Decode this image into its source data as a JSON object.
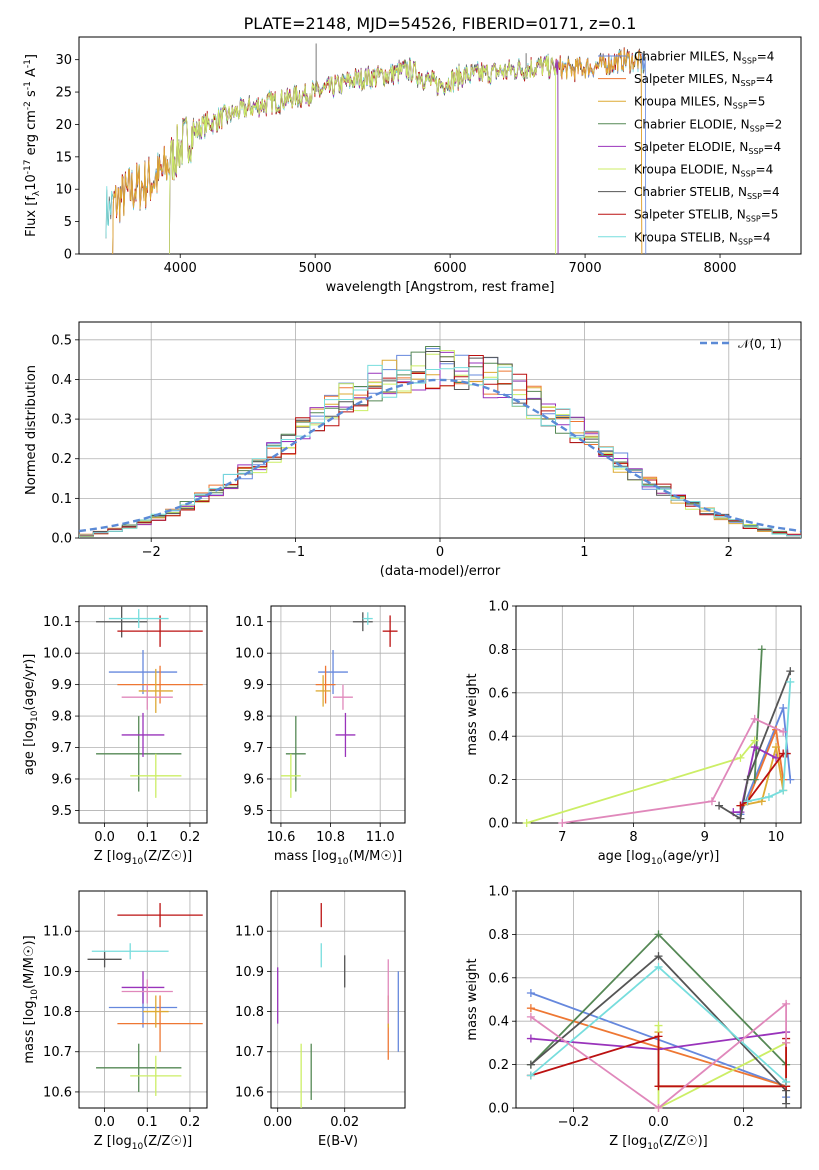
{
  "title": "PLATE=2148, MJD=54526, FIBERID=0171, z=0.1",
  "colors": {
    "Chabrier MILES": "#6688dd",
    "Salpeter MILES": "#ee7733",
    "Kroupa MILES": "#ddaa33",
    "Chabrier ELODIE": "#558855",
    "Salpeter ELODIE": "#9933bb",
    "Kroupa ELODIE": "#ccee66",
    "Chabrier STELIB": "#555555",
    "Salpeter STELIB": "#bb1111",
    "Kroupa STELIB": "#77dddd",
    "normal_curve": "#5b8ad6",
    "pink": "#e088bb"
  },
  "chart_data": [
    {
      "id": "spectrum",
      "type": "line",
      "xlabel": "wavelength [Angstrom, rest frame]",
      "ylabel": "Flux [f_λ10^-17 erg cm^-2 s^-1 A^-1]",
      "xlim": [
        3250,
        8600
      ],
      "ylim": [
        0,
        33.5
      ],
      "xticks": [
        4000,
        5000,
        6000,
        7000,
        8000
      ],
      "yticks": [
        0,
        5,
        10,
        15,
        20,
        25,
        30
      ],
      "legend_position": "top-right",
      "legend": [
        {
          "name": "Chabrier MILES, N_SSP=4",
          "base": "Chabrier MILES, N",
          "sub": "SSP",
          "tail": "=4",
          "color_key": "Chabrier MILES"
        },
        {
          "name": "Salpeter MILES, N_SSP=4",
          "base": "Salpeter MILES, N",
          "sub": "SSP",
          "tail": "=4",
          "color_key": "Salpeter MILES"
        },
        {
          "name": "Kroupa MILES, N_SSP=5",
          "base": "Kroupa MILES, N",
          "sub": "SSP",
          "tail": "=5",
          "color_key": "Kroupa MILES"
        },
        {
          "name": "Chabrier ELODIE, N_SSP=2",
          "base": "Chabrier ELODIE, N",
          "sub": "SSP",
          "tail": "=2",
          "color_key": "Chabrier ELODIE"
        },
        {
          "name": "Salpeter ELODIE, N_SSP=4",
          "base": "Salpeter ELODIE, N",
          "sub": "SSP",
          "tail": "=4",
          "color_key": "Salpeter ELODIE"
        },
        {
          "name": "Kroupa ELODIE, N_SSP=4",
          "base": "Kroupa ELODIE, N",
          "sub": "SSP",
          "tail": "=4",
          "color_key": "Kroupa ELODIE"
        },
        {
          "name": "Chabrier STELIB, N_SSP=4",
          "base": "Chabrier STELIB, N",
          "sub": "SSP",
          "tail": "=4",
          "color_key": "Chabrier STELIB"
        },
        {
          "name": "Salpeter STELIB, N_SSP=5",
          "base": "Salpeter STELIB, N",
          "sub": "SSP",
          "tail": "=5",
          "color_key": "Salpeter STELIB"
        },
        {
          "name": "Kroupa STELIB, N_SSP=4",
          "base": "Kroupa STELIB, N",
          "sub": "SSP",
          "tail": "=4",
          "color_key": "Kroupa STELIB"
        }
      ],
      "envelope": {
        "x": [
          3450,
          3550,
          3650,
          3750,
          3850,
          3950,
          4050,
          4150,
          4300,
          4500,
          4700,
          4900,
          5100,
          5300,
          5500,
          5700,
          5900,
          6100,
          6300,
          6500,
          6700,
          6900,
          7100,
          7300,
          7450
        ],
        "y": [
          6.5,
          8.5,
          10,
          11,
          12,
          15,
          18,
          19.5,
          21,
          22.5,
          23.5,
          24.5,
          25.5,
          27,
          27.5,
          28.5,
          26,
          27.5,
          28,
          28.5,
          29,
          28.5,
          29,
          30,
          29.5
        ]
      },
      "series_ranges": {
        "Chabrier MILES": [
          3500,
          7450
        ],
        "Salpeter MILES": [
          3500,
          7420
        ],
        "Kroupa MILES": [
          3500,
          7420
        ],
        "Chabrier ELODIE": [
          3920,
          6800
        ],
        "Salpeter ELODIE": [
          3920,
          6800
        ],
        "Kroupa ELODIE": [
          3920,
          6780
        ],
        "Chabrier STELIB": [
          3450,
          7450
        ],
        "Salpeter STELIB": [
          3500,
          7420
        ],
        "Kroupa STELIB": [
          3450,
          7450
        ]
      },
      "emission_lines": [
        {
          "x": 5007,
          "y": 32.5
        },
        {
          "x": 6563,
          "y": 31.0
        }
      ]
    },
    {
      "id": "residuals",
      "type": "histogram",
      "xlabel": "(data-model)/error",
      "ylabel": "Normed distribution",
      "xlim": [
        -2.5,
        2.5
      ],
      "ylim": [
        0,
        0.545
      ],
      "xticks": [
        -2,
        -1,
        0,
        1,
        2
      ],
      "yticks": [
        0.0,
        0.1,
        0.2,
        0.3,
        0.4,
        0.5
      ],
      "grid": true,
      "bin_edges": [
        -2.5,
        2.5
      ],
      "n_bins": 50,
      "legend_label": "𝒩(0, 1)",
      "legend_position": "top-right",
      "curve": "standard normal N(0,1)"
    },
    {
      "id": "age_vs_Z",
      "type": "errorbar",
      "xlabel": "Z [log10(Z/Z☉)]",
      "ylabel": "age [log10(age/yr)]",
      "xlim": [
        -0.06,
        0.24
      ],
      "ylim": [
        9.46,
        10.15
      ],
      "xticks": [
        0.0,
        0.1,
        0.2
      ],
      "yticks": [
        9.5,
        9.6,
        9.7,
        9.8,
        9.9,
        10.0,
        10.1
      ],
      "grid": true,
      "points": [
        {
          "model": "Chabrier MILES",
          "x": 0.09,
          "y": 9.94,
          "xerr": 0.08,
          "yerr": 0.07
        },
        {
          "model": "Salpeter MILES",
          "x": 0.13,
          "y": 9.9,
          "xerr": 0.1,
          "yerr": 0.06
        },
        {
          "model": "Kroupa MILES",
          "x": 0.12,
          "y": 9.88,
          "xerr": 0.04,
          "yerr": 0.07
        },
        {
          "model": "Chabrier ELODIE",
          "x": 0.08,
          "y": 9.68,
          "xerr": 0.1,
          "yerr": 0.12
        },
        {
          "model": "Salpeter ELODIE",
          "x": 0.09,
          "y": 9.74,
          "xerr": 0.05,
          "yerr": 0.07
        },
        {
          "model": "Kroupa ELODIE",
          "x": 0.12,
          "y": 9.61,
          "xerr": 0.06,
          "yerr": 0.07
        },
        {
          "model": "Chabrier STELIB",
          "x": 0.04,
          "y": 10.1,
          "xerr": 0.06,
          "yerr": 0.05
        },
        {
          "model": "Salpeter STELIB",
          "x": 0.13,
          "y": 10.07,
          "xerr": 0.1,
          "yerr": 0.05
        },
        {
          "model": "Kroupa STELIB",
          "x": 0.08,
          "y": 10.11,
          "xerr": 0.07,
          "yerr": 0.03
        },
        {
          "model": "pink",
          "x": 0.1,
          "y": 9.86,
          "xerr": 0.06,
          "yerr": 0.04
        }
      ]
    },
    {
      "id": "age_vs_mass",
      "type": "errorbar",
      "xlabel": "mass [log10(M/M☉)]",
      "ylabel": "",
      "xlim": [
        10.56,
        11.1
      ],
      "ylim": [
        9.46,
        10.15
      ],
      "xticks": [
        10.6,
        10.8,
        11.0
      ],
      "yticks": [
        9.5,
        9.6,
        9.7,
        9.8,
        9.9,
        10.0,
        10.1
      ],
      "grid": true,
      "points": [
        {
          "model": "Chabrier MILES",
          "x": 10.81,
          "y": 9.94,
          "xerr": 0.06,
          "yerr": 0.07
        },
        {
          "model": "Salpeter MILES",
          "x": 10.78,
          "y": 9.9,
          "xerr": 0.04,
          "yerr": 0.06
        },
        {
          "model": "Kroupa MILES",
          "x": 10.77,
          "y": 9.88,
          "xerr": 0.03,
          "yerr": 0.05
        },
        {
          "model": "Chabrier ELODIE",
          "x": 10.66,
          "y": 9.68,
          "xerr": 0.04,
          "yerr": 0.12
        },
        {
          "model": "Salpeter ELODIE",
          "x": 10.86,
          "y": 9.74,
          "xerr": 0.04,
          "yerr": 0.07
        },
        {
          "model": "Kroupa ELODIE",
          "x": 10.64,
          "y": 9.61,
          "xerr": 0.04,
          "yerr": 0.07
        },
        {
          "model": "Chabrier STELIB",
          "x": 10.93,
          "y": 10.1,
          "xerr": 0.04,
          "yerr": 0.03
        },
        {
          "model": "Salpeter STELIB",
          "x": 11.04,
          "y": 10.07,
          "xerr": 0.03,
          "yerr": 0.05
        },
        {
          "model": "Kroupa STELIB",
          "x": 10.95,
          "y": 10.11,
          "xerr": 0.02,
          "yerr": 0.02
        },
        {
          "model": "pink",
          "x": 10.85,
          "y": 9.86,
          "xerr": 0.04,
          "yerr": 0.04
        }
      ]
    },
    {
      "id": "weight_vs_age",
      "type": "line",
      "xlabel": "age [log10(age/yr)]",
      "ylabel": "mass weight",
      "xlim": [
        6.35,
        10.35
      ],
      "ylim": [
        0,
        1.0
      ],
      "xticks": [
        7,
        8,
        9,
        10
      ],
      "yticks": [
        0.0,
        0.2,
        0.4,
        0.6,
        0.8,
        1.0
      ],
      "grid": true,
      "series": [
        {
          "model": "Chabrier MILES",
          "x": [
            9.5,
            10.1,
            10.2
          ],
          "y": [
            0.04,
            0.53,
            0.2
          ]
        },
        {
          "model": "Salpeter MILES",
          "x": [
            9.6,
            10.0,
            10.1
          ],
          "y": [
            0.1,
            0.43,
            0.2
          ]
        },
        {
          "model": "Kroupa MILES",
          "x": [
            9.5,
            9.8,
            10.0,
            10.1
          ],
          "y": [
            0.08,
            0.1,
            0.35,
            0.15
          ]
        },
        {
          "model": "Chabrier ELODIE",
          "x": [
            9.7,
            9.8
          ],
          "y": [
            0.2,
            0.8
          ]
        },
        {
          "model": "Salpeter ELODIE",
          "x": [
            9.4,
            9.5,
            9.7,
            10.0
          ],
          "y": [
            0.05,
            0.05,
            0.35,
            0.3
          ]
        },
        {
          "model": "Kroupa ELODIE",
          "x": [
            6.5,
            9.5,
            9.7
          ],
          "y": [
            0.0,
            0.3,
            0.38
          ]
        },
        {
          "model": "Chabrier STELIB",
          "x": [
            9.2,
            9.5,
            9.6,
            10.2
          ],
          "y": [
            0.08,
            0.02,
            0.2,
            0.7
          ]
        },
        {
          "model": "Salpeter STELIB",
          "x": [
            9.5,
            9.6,
            10.1,
            10.15
          ],
          "y": [
            0.08,
            0.1,
            0.32,
            0.32
          ]
        },
        {
          "model": "Kroupa STELIB",
          "x": [
            9.6,
            9.9,
            10.1,
            10.2
          ],
          "y": [
            0.1,
            0.12,
            0.15,
            0.65
          ]
        },
        {
          "model": "pink",
          "x": [
            7.0,
            9.1,
            9.7,
            10.1
          ],
          "y": [
            0.0,
            0.1,
            0.48,
            0.42
          ]
        }
      ]
    },
    {
      "id": "mass_vs_Z",
      "type": "errorbar",
      "xlabel": "Z [log10(Z/Z☉)]",
      "ylabel": "mass [log10(M/M☉)]",
      "xlim": [
        -0.06,
        0.24
      ],
      "ylim": [
        10.56,
        11.1
      ],
      "xticks": [
        0.0,
        0.1,
        0.2
      ],
      "yticks": [
        10.6,
        10.7,
        10.8,
        10.9,
        11.0
      ],
      "grid": true,
      "points": [
        {
          "model": "Chabrier MILES",
          "x": 0.09,
          "y": 10.81,
          "xerr": 0.08,
          "yerr": 0.05
        },
        {
          "model": "Salpeter MILES",
          "x": 0.13,
          "y": 10.77,
          "xerr": 0.1,
          "yerr": 0.07
        },
        {
          "model": "Kroupa MILES",
          "x": 0.12,
          "y": 10.8,
          "xerr": 0.03,
          "yerr": 0.04
        },
        {
          "model": "Chabrier ELODIE",
          "x": 0.08,
          "y": 10.66,
          "xerr": 0.1,
          "yerr": 0.06
        },
        {
          "model": "Salpeter ELODIE",
          "x": 0.09,
          "y": 10.86,
          "xerr": 0.05,
          "yerr": 0.04
        },
        {
          "model": "Kroupa ELODIE",
          "x": 0.12,
          "y": 10.64,
          "xerr": 0.06,
          "yerr": 0.05
        },
        {
          "model": "Chabrier STELIB",
          "x": 0.0,
          "y": 10.93,
          "xerr": 0.04,
          "yerr": 0.02
        },
        {
          "model": "Salpeter STELIB",
          "x": 0.13,
          "y": 11.04,
          "xerr": 0.1,
          "yerr": 0.03
        },
        {
          "model": "Kroupa STELIB",
          "x": 0.06,
          "y": 10.95,
          "xerr": 0.09,
          "yerr": 0.02
        },
        {
          "model": "pink",
          "x": 0.1,
          "y": 10.85,
          "xerr": 0.06,
          "yerr": 0.03
        }
      ]
    },
    {
      "id": "mass_vs_ebv",
      "type": "errorbar",
      "xlabel": "E(B-V)",
      "ylabel": "",
      "xlim": [
        -0.002,
        0.038
      ],
      "ylim": [
        10.56,
        11.1
      ],
      "xticks": [
        0.0,
        0.02
      ],
      "yticks": [
        10.6,
        10.7,
        10.8,
        10.9,
        11.0
      ],
      "grid": true,
      "points": [
        {
          "model": "Chabrier MILES",
          "x": 0.036,
          "y": 10.8,
          "xerr": 0.0,
          "yerr": 0.1
        },
        {
          "model": "Salpeter MILES",
          "x": 0.033,
          "y": 10.76,
          "xerr": 0.0,
          "yerr": 0.08
        },
        {
          "model": "Kroupa MILES",
          "x": 0.033,
          "y": 10.8,
          "xerr": 0.0,
          "yerr": 0.04
        },
        {
          "model": "Chabrier ELODIE",
          "x": 0.01,
          "y": 10.65,
          "xerr": 0.0,
          "yerr": 0.07
        },
        {
          "model": "Salpeter ELODIE",
          "x": 0.0,
          "y": 10.84,
          "xerr": 0.0,
          "yerr": 0.07
        },
        {
          "model": "Kroupa ELODIE",
          "x": 0.007,
          "y": 10.64,
          "xerr": 0.0,
          "yerr": 0.08
        },
        {
          "model": "Chabrier STELIB",
          "x": 0.02,
          "y": 10.9,
          "xerr": 0.0,
          "yerr": 0.04
        },
        {
          "model": "Salpeter STELIB",
          "x": 0.013,
          "y": 11.04,
          "xerr": 0.0,
          "yerr": 0.03
        },
        {
          "model": "Kroupa STELIB",
          "x": 0.013,
          "y": 10.94,
          "xerr": 0.0,
          "yerr": 0.03
        },
        {
          "model": "pink",
          "x": 0.033,
          "y": 10.85,
          "xerr": 0.0,
          "yerr": 0.08
        }
      ]
    },
    {
      "id": "weight_vs_Z",
      "type": "line",
      "xlabel": "Z [log10(Z/Z☉)]",
      "ylabel": "mass weight",
      "xlim": [
        -0.335,
        0.335
      ],
      "ylim": [
        0,
        1.0
      ],
      "xticks": [
        -0.2,
        0.0,
        0.2
      ],
      "yticks": [
        0.0,
        0.2,
        0.4,
        0.6,
        0.8,
        1.0
      ],
      "grid": true,
      "series": [
        {
          "model": "Chabrier MILES",
          "x": [
            -0.3,
            0.3,
            0.3
          ],
          "y": [
            0.53,
            0.1,
            0.05
          ]
        },
        {
          "model": "Salpeter MILES",
          "x": [
            -0.3,
            0.3
          ],
          "y": [
            0.46,
            0.1
          ]
        },
        {
          "model": "Kroupa MILES",
          "x": [
            0.0,
            0.0,
            0.3,
            0.3
          ],
          "y": [
            0.35,
            0.1,
            0.1,
            0.3
          ]
        },
        {
          "model": "Chabrier ELODIE",
          "x": [
            -0.3,
            0.0,
            0.3
          ],
          "y": [
            0.2,
            0.8,
            0.2
          ]
        },
        {
          "model": "Salpeter ELODIE",
          "x": [
            -0.3,
            0.0,
            0.3
          ],
          "y": [
            0.32,
            0.27,
            0.35
          ]
        },
        {
          "model": "Kroupa ELODIE",
          "x": [
            0.0,
            0.0,
            0.3
          ],
          "y": [
            0.38,
            0.0,
            0.3
          ]
        },
        {
          "model": "Chabrier STELIB",
          "x": [
            -0.3,
            0.0,
            0.3,
            0.3
          ],
          "y": [
            0.2,
            0.7,
            0.08,
            0.02
          ]
        },
        {
          "model": "Salpeter STELIB",
          "x": [
            -0.3,
            0.0,
            0.0,
            0.3,
            0.3
          ],
          "y": [
            0.15,
            0.33,
            0.1,
            0.1,
            0.32
          ]
        },
        {
          "model": "Kroupa STELIB",
          "x": [
            -0.3,
            0.0,
            0.3
          ],
          "y": [
            0.15,
            0.65,
            0.12
          ]
        },
        {
          "model": "pink",
          "x": [
            -0.3,
            0.0,
            0.3,
            0.3
          ],
          "y": [
            0.42,
            0.0,
            0.48,
            0.3
          ]
        }
      ]
    }
  ]
}
